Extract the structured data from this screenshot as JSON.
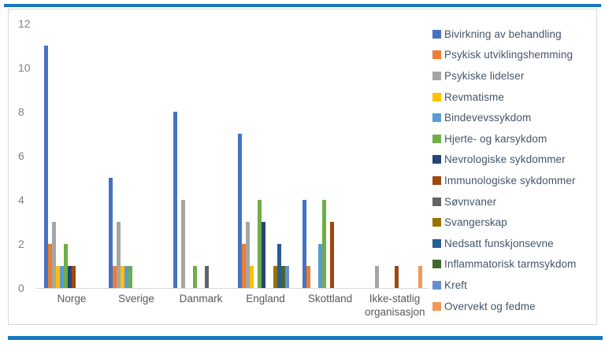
{
  "colors": {
    "rule_blue": "#1878be",
    "frame_border": "#d9d9d9",
    "axis_text": "#808080",
    "category_text": "#595959",
    "legend_text": "#44546a",
    "baseline": "#d9d9d9"
  },
  "chart_data": {
    "type": "bar",
    "title": "",
    "xlabel": "",
    "ylabel": "",
    "ylim": [
      0,
      12
    ],
    "yticks": [
      0,
      2,
      4,
      6,
      8,
      10,
      12
    ],
    "grid": false,
    "legend_position": "right",
    "categories": [
      "Norge",
      "Sverige",
      "Danmark",
      "England",
      "Skottland",
      "Ikke-statlig organisasjon"
    ],
    "series": [
      {
        "name": "Bivirkning av behandling",
        "color": "#4472c4",
        "values": [
          11,
          5,
          8,
          7,
          4,
          0
        ]
      },
      {
        "name": "Psykisk utviklingshemming",
        "color": "#ed7d31",
        "values": [
          2,
          1,
          0,
          2,
          1,
          0
        ]
      },
      {
        "name": "Psykiske lidelser",
        "color": "#a5a5a5",
        "values": [
          3,
          3,
          4,
          3,
          0,
          1
        ]
      },
      {
        "name": "Revmatisme",
        "color": "#ffc000",
        "values": [
          1,
          1,
          0,
          1,
          0,
          0
        ]
      },
      {
        "name": "Bindevevssykdom",
        "color": "#5b9bd5",
        "values": [
          1,
          1,
          0,
          0,
          2,
          0
        ]
      },
      {
        "name": "Hjerte- og karsykdom",
        "color": "#70ad47",
        "values": [
          2,
          1,
          1,
          4,
          4,
          0
        ]
      },
      {
        "name": "Nevrologiske sykdommer",
        "color": "#264478",
        "values": [
          1,
          0,
          0,
          3,
          0,
          0
        ]
      },
      {
        "name": "Immunologiske sykdommer",
        "color": "#9e480e",
        "values": [
          1,
          0,
          0,
          0,
          3,
          1
        ]
      },
      {
        "name": "Søvnvaner",
        "color": "#636363",
        "values": [
          0,
          0,
          1,
          0,
          0,
          0
        ]
      },
      {
        "name": "Svangerskap",
        "color": "#997300",
        "values": [
          0,
          0,
          0,
          1,
          0,
          0
        ]
      },
      {
        "name": "Nedsatt funskjonsevne",
        "color": "#255e91",
        "values": [
          0,
          0,
          0,
          2,
          0,
          0
        ]
      },
      {
        "name": "Inflammatorisk tarmsykdom",
        "color": "#43682b",
        "values": [
          0,
          0,
          0,
          1,
          0,
          0
        ]
      },
      {
        "name": "Kreft",
        "color": "#698ed0",
        "values": [
          0,
          0,
          0,
          1,
          0,
          0
        ]
      },
      {
        "name": "Overvekt og fedme",
        "color": "#f1975a",
        "values": [
          0,
          0,
          0,
          0,
          0,
          1
        ]
      }
    ]
  }
}
